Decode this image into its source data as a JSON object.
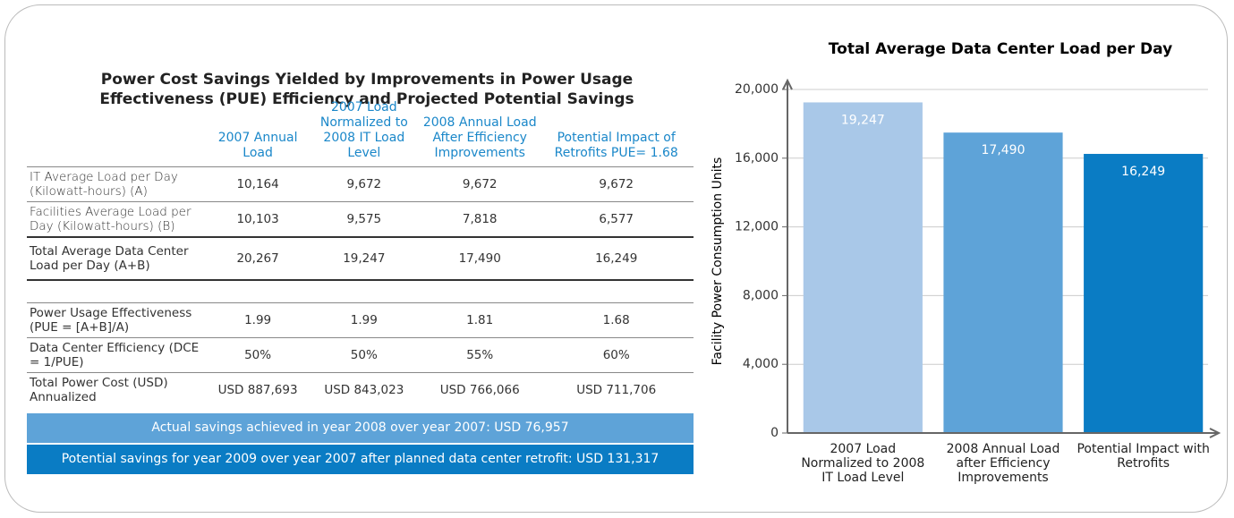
{
  "table": {
    "title": "Power Cost Savings Yielded by Improvements in Power Usage Effectiveness (PUE) Efficiency and Projected Potential Savings",
    "columns": [
      "2007 Annual Load",
      "2007 Load Normalized to 2008 IT Load Level",
      "2008 Annual Load After Efficiency Improvements",
      "Potential Impact of Retrofits PUE= 1.68"
    ],
    "rows": [
      {
        "label": "IT Average Load per Day (Kilowatt-hours) (A)",
        "cells": [
          "10,164",
          "9,672",
          "9,672",
          "9,672"
        ]
      },
      {
        "label": "Facilities Average Load per Day (Kilowatt-hours) (B)",
        "cells": [
          "10,103",
          "9,575",
          "7,818",
          "6,577"
        ]
      },
      {
        "label": "Total Average Data Center Load per Day (A+B)",
        "cells": [
          "20,267",
          "19,247",
          "17,490",
          "16,249"
        ]
      },
      {
        "label": "Power Usage Effectiveness (PUE = [A+B]/A)",
        "cells": [
          "1.99",
          "1.99",
          "1.81",
          "1.68"
        ]
      },
      {
        "label": "Data Center Efficiency (DCE = 1/PUE)",
        "cells": [
          "50%",
          "50%",
          "55%",
          "60%"
        ]
      },
      {
        "label": "Total Power Cost (USD) Annualized",
        "cells": [
          "USD 887,693",
          "USD 843,023",
          "USD 766,066",
          "USD 711,706"
        ]
      }
    ],
    "notes": [
      "Actual savings achieved in year 2008 over year 2007: USD 76,957",
      "Potential savings for year 2009 over year 2007 after planned data center retrofit: USD 131,317"
    ]
  },
  "chart_data": {
    "type": "bar",
    "title": "Total Average Data Center Load per Day",
    "y_label": "Facility Power Consumption Units",
    "categories": [
      "2007 Load Normalized to 2008 IT Load Level",
      "2008 Annual Load after Efficiency Improvements",
      "Potential Impact with Retrofits"
    ],
    "values": [
      19247,
      17490,
      16249
    ],
    "value_labels": [
      "19,247",
      "17,490",
      "16,249"
    ],
    "colors": [
      "#a9c8e8",
      "#5ea3d8",
      "#0a7cc4"
    ],
    "ylim": [
      0,
      20000
    ],
    "yticks": [
      0,
      {
        "value": 4000,
        "label": "4,000"
      },
      {
        "value": 8000,
        "label": "8,000"
      },
      {
        "value": 12000,
        "label": "12,000"
      },
      {
        "value": 16000,
        "label": "16,000"
      },
      {
        "value": 20000,
        "label": "20,000"
      }
    ],
    "grid": true
  }
}
